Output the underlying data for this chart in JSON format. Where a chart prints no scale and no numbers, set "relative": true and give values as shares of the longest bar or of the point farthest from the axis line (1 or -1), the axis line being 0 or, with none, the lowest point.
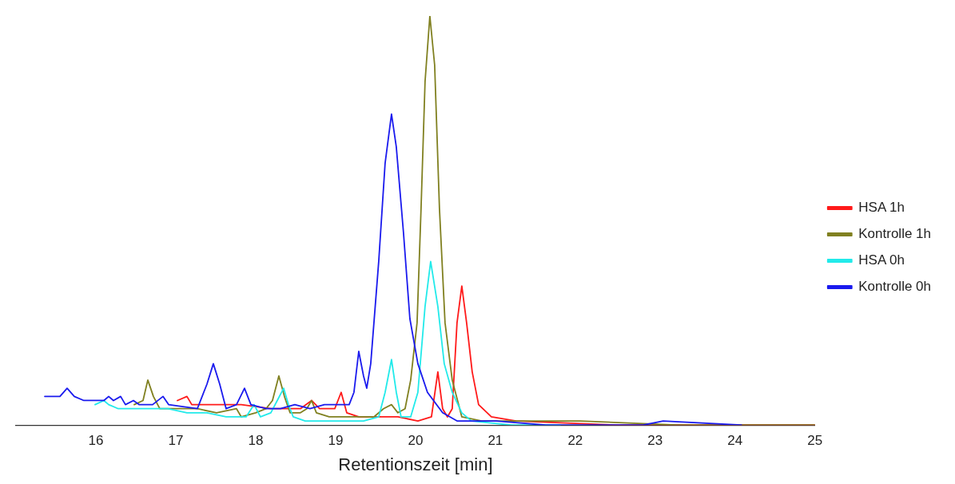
{
  "chart_data": {
    "type": "line",
    "xlabel": "Retentionszeit [min]",
    "relative": true,
    "xlim": [
      15,
      25
    ],
    "xticks": [
      16,
      17,
      18,
      19,
      20,
      21,
      22,
      23,
      24,
      25
    ],
    "tick_labels": "x",
    "grid": false,
    "legend": "right",
    "marker": "none",
    "line_style": "solid",
    "series": [
      {
        "name": "Kontrolle 0h",
        "color": "#1a1aee",
        "x": [
          15.36,
          15.55,
          15.64,
          15.73,
          15.85,
          16.1,
          16.16,
          16.22,
          16.31,
          16.37,
          16.47,
          16.54,
          16.71,
          16.84,
          16.91,
          17.27,
          17.39,
          17.47,
          17.55,
          17.63,
          17.76,
          17.86,
          17.94,
          18.13,
          18.31,
          18.49,
          18.68,
          18.86,
          19.05,
          19.17,
          19.23,
          19.29,
          19.35,
          19.39,
          19.44,
          19.54,
          19.62,
          19.7,
          19.76,
          19.85,
          19.93,
          20.03,
          20.15,
          20.34,
          20.52,
          21.01,
          21.63,
          22.85,
          23.1,
          24.08
        ],
        "values": [
          0.07,
          0.07,
          0.09,
          0.07,
          0.06,
          0.06,
          0.07,
          0.06,
          0.07,
          0.05,
          0.06,
          0.05,
          0.05,
          0.07,
          0.05,
          0.04,
          0.1,
          0.15,
          0.1,
          0.04,
          0.05,
          0.09,
          0.05,
          0.04,
          0.04,
          0.05,
          0.04,
          0.05,
          0.05,
          0.05,
          0.08,
          0.18,
          0.12,
          0.09,
          0.15,
          0.4,
          0.64,
          0.76,
          0.68,
          0.47,
          0.26,
          0.15,
          0.08,
          0.03,
          0.01,
          0.01,
          0,
          0,
          0.01,
          0
        ]
      },
      {
        "name": "HSA 0h",
        "color": "#22eaea",
        "x": [
          15.99,
          16.1,
          16.16,
          16.28,
          16.53,
          16.77,
          16.9,
          17.14,
          17.39,
          17.63,
          17.88,
          17.98,
          18.06,
          18.19,
          18.27,
          18.35,
          18.41,
          18.47,
          18.62,
          18.99,
          19.35,
          19.54,
          19.62,
          19.7,
          19.76,
          19.82,
          19.94,
          20.03,
          20.12,
          20.19,
          20.28,
          20.36,
          20.46,
          20.58,
          20.7,
          21.2,
          21.81
        ],
        "values": [
          0.05,
          0.06,
          0.05,
          0.04,
          0.04,
          0.04,
          0.04,
          0.03,
          0.03,
          0.02,
          0.02,
          0.05,
          0.02,
          0.03,
          0.06,
          0.09,
          0.05,
          0.02,
          0.01,
          0.01,
          0.01,
          0.02,
          0.08,
          0.16,
          0.08,
          0.02,
          0.02,
          0.08,
          0.29,
          0.4,
          0.29,
          0.15,
          0.08,
          0.03,
          0.01,
          0,
          0
        ]
      },
      {
        "name": "Kontrolle 1h",
        "color": "#808020",
        "x": [
          16.48,
          16.59,
          16.65,
          16.72,
          16.8,
          17.02,
          17.27,
          17.51,
          17.76,
          17.82,
          18.0,
          18.13,
          18.21,
          18.29,
          18.36,
          18.43,
          18.56,
          18.64,
          18.7,
          18.76,
          18.92,
          19.23,
          19.48,
          19.6,
          19.7,
          19.78,
          19.87,
          19.94,
          20.02,
          20.07,
          20.12,
          20.18,
          20.24,
          20.3,
          20.37,
          20.46,
          20.58,
          20.83,
          22.06,
          23.28,
          25.0
        ],
        "values": [
          0.05,
          0.06,
          0.11,
          0.07,
          0.04,
          0.04,
          0.04,
          0.03,
          0.04,
          0.02,
          0.03,
          0.04,
          0.06,
          0.12,
          0.07,
          0.03,
          0.03,
          0.04,
          0.06,
          0.03,
          0.02,
          0.02,
          0.02,
          0.04,
          0.05,
          0.03,
          0.04,
          0.11,
          0.25,
          0.53,
          0.84,
          1,
          0.88,
          0.53,
          0.25,
          0.11,
          0.02,
          0.01,
          0.01,
          0,
          0
        ]
      },
      {
        "name": "HSA 1h",
        "color": "#ff1a1a",
        "x": [
          17.02,
          17.14,
          17.2,
          17.45,
          17.82,
          18.19,
          18.56,
          18.7,
          18.8,
          18.99,
          19.07,
          19.14,
          19.29,
          19.78,
          20.03,
          20.2,
          20.28,
          20.34,
          20.4,
          20.46,
          20.52,
          20.58,
          20.64,
          20.71,
          20.79,
          20.95,
          21.26,
          22.5,
          23.72,
          25.0
        ],
        "values": [
          0.06,
          0.07,
          0.05,
          0.05,
          0.05,
          0.04,
          0.04,
          0.06,
          0.04,
          0.04,
          0.08,
          0.03,
          0.02,
          0.02,
          0.01,
          0.02,
          0.13,
          0.04,
          0.02,
          0.04,
          0.25,
          0.34,
          0.25,
          0.13,
          0.05,
          0.02,
          0.01,
          0,
          0,
          0
        ]
      }
    ]
  }
}
